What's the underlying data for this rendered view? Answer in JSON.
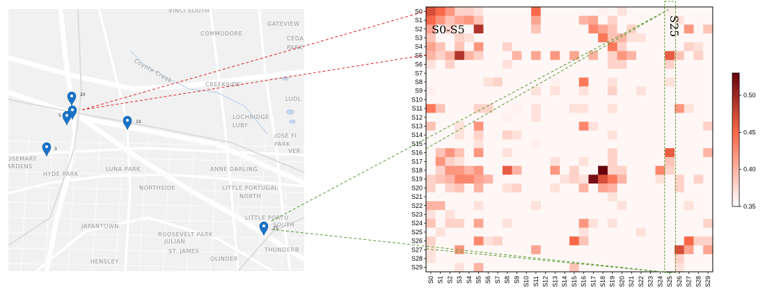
{
  "map": {
    "places": [
      {
        "name": "VINCI SOUTH"
      },
      {
        "name": "GATEVIEW"
      },
      {
        "name": "COMMODORE"
      },
      {
        "name": "CEDA"
      },
      {
        "name": "PARK"
      },
      {
        "name": "Coyote Creek"
      },
      {
        "name": "CREEKSIDE"
      },
      {
        "name": "LUDL"
      },
      {
        "name": "LOCHRIDGE"
      },
      {
        "name": "LUBY"
      },
      {
        "name": "JOSE FI"
      },
      {
        "name": "PARK"
      },
      {
        "name": "VER"
      },
      {
        "name": "OSEMARY"
      },
      {
        "name": "ARDENS"
      },
      {
        "name": "HYDE PARK"
      },
      {
        "name": "LUNA PARK"
      },
      {
        "name": "ANNE DARLING"
      },
      {
        "name": "NORTHSIDE"
      },
      {
        "name": "LITTLE PORTUGAL"
      },
      {
        "name": "NORTH"
      },
      {
        "name": "LITTLE PORTU"
      },
      {
        "name": "SOUTH"
      },
      {
        "name": "JAPANTOWN"
      },
      {
        "name": "ROOSEVELT PARK"
      },
      {
        "name": "JULIAN"
      },
      {
        "name": "ST. JAMES"
      },
      {
        "name": "THUNDERB"
      },
      {
        "name": "HENSLEY"
      },
      {
        "name": "OLINDER"
      }
    ],
    "pins": [
      {
        "id": "20"
      },
      {
        "id": "5"
      },
      {
        "id": "19"
      },
      {
        "id": "3"
      },
      {
        "id": "25"
      }
    ],
    "pin_color": "#1a73c8",
    "red_line_color": "#e02020",
    "green_line_color": "#4c9a2a"
  },
  "chart_data": {
    "type": "heatmap",
    "rows": [
      "S0",
      "S1",
      "S2",
      "S3",
      "S4",
      "S5",
      "S6",
      "S7",
      "S8",
      "S9",
      "S10",
      "S11",
      "S12",
      "S13",
      "S14",
      "S15",
      "S16",
      "S17",
      "S18",
      "S19",
      "S20",
      "S21",
      "S22",
      "S23",
      "S24",
      "S25",
      "S26",
      "S27",
      "S28",
      "S29"
    ],
    "columns": [
      "S0",
      "S1",
      "S2",
      "S3",
      "S4",
      "S5",
      "S6",
      "S7",
      "S8",
      "S9",
      "S10",
      "S11",
      "S12",
      "S13",
      "S14",
      "S15",
      "S16",
      "S17",
      "S18",
      "S19",
      "S20",
      "S21",
      "S22",
      "S23",
      "S24",
      "S25",
      "S26",
      "S27",
      "S28",
      "S29"
    ],
    "default_value": 0.355,
    "cells": [
      [
        0,
        0,
        0.47
      ],
      [
        0,
        1,
        0.45
      ],
      [
        0,
        2,
        0.42
      ],
      [
        0,
        3,
        0.38
      ],
      [
        0,
        4,
        0.38
      ],
      [
        0,
        5,
        0.37
      ],
      [
        0,
        11,
        0.45
      ],
      [
        0,
        18,
        0.36
      ],
      [
        0,
        20,
        0.37
      ],
      [
        0,
        25,
        0.36
      ],
      [
        1,
        0,
        0.45
      ],
      [
        1,
        1,
        0.42
      ],
      [
        1,
        2,
        0.39
      ],
      [
        1,
        3,
        0.41
      ],
      [
        1,
        4,
        0.42
      ],
      [
        1,
        5,
        0.39
      ],
      [
        1,
        11,
        0.41
      ],
      [
        1,
        16,
        0.4
      ],
      [
        1,
        17,
        0.41
      ],
      [
        1,
        19,
        0.38
      ],
      [
        1,
        26,
        0.37
      ],
      [
        2,
        0,
        0.41
      ],
      [
        2,
        2,
        0.38
      ],
      [
        2,
        5,
        0.49
      ],
      [
        2,
        11,
        0.39
      ],
      [
        2,
        17,
        0.43
      ],
      [
        2,
        18,
        0.41
      ],
      [
        2,
        19,
        0.39
      ],
      [
        2,
        21,
        0.38
      ],
      [
        2,
        27,
        0.42
      ],
      [
        2,
        29,
        0.39
      ],
      [
        3,
        0,
        0.39
      ],
      [
        3,
        3,
        0.38
      ],
      [
        3,
        4,
        0.37
      ],
      [
        3,
        18,
        0.44
      ],
      [
        3,
        19,
        0.39
      ],
      [
        3,
        20,
        0.4
      ],
      [
        3,
        21,
        0.37
      ],
      [
        3,
        22,
        0.37
      ],
      [
        4,
        0,
        0.41
      ],
      [
        4,
        1,
        0.39
      ],
      [
        4,
        3,
        0.39
      ],
      [
        4,
        5,
        0.42
      ],
      [
        4,
        8,
        0.38
      ],
      [
        4,
        19,
        0.44
      ],
      [
        4,
        20,
        0.38
      ],
      [
        4,
        27,
        0.38
      ],
      [
        4,
        28,
        0.37
      ],
      [
        5,
        0,
        0.4
      ],
      [
        5,
        1,
        0.38
      ],
      [
        5,
        2,
        0.4
      ],
      [
        5,
        3,
        0.49
      ],
      [
        5,
        4,
        0.4
      ],
      [
        5,
        5,
        0.38
      ],
      [
        5,
        9,
        0.4
      ],
      [
        5,
        11,
        0.41
      ],
      [
        5,
        13,
        0.42
      ],
      [
        5,
        15,
        0.41
      ],
      [
        5,
        17,
        0.4
      ],
      [
        5,
        19,
        0.38
      ],
      [
        5,
        20,
        0.42
      ],
      [
        5,
        21,
        0.4
      ],
      [
        5,
        25,
        0.46
      ],
      [
        5,
        26,
        0.39
      ],
      [
        5,
        28,
        0.38
      ],
      [
        6,
        0,
        0.37
      ],
      [
        6,
        2,
        0.38
      ],
      [
        6,
        8,
        0.37
      ],
      [
        6,
        19,
        0.38
      ],
      [
        6,
        20,
        0.38
      ],
      [
        6,
        25,
        0.38
      ],
      [
        8,
        6,
        0.37
      ],
      [
        8,
        7,
        0.38
      ],
      [
        8,
        13,
        0.36
      ],
      [
        8,
        16,
        0.44
      ],
      [
        8,
        19,
        0.37
      ],
      [
        8,
        25,
        0.37
      ],
      [
        9,
        0,
        0.36
      ],
      [
        9,
        11,
        0.37
      ],
      [
        9,
        13,
        0.37
      ],
      [
        9,
        16,
        0.37
      ],
      [
        9,
        19,
        0.38
      ],
      [
        9,
        22,
        0.37
      ],
      [
        11,
        0,
        0.44
      ],
      [
        11,
        1,
        0.39
      ],
      [
        11,
        5,
        0.38
      ],
      [
        11,
        6,
        0.38
      ],
      [
        11,
        9,
        0.36
      ],
      [
        11,
        11,
        0.37
      ],
      [
        11,
        15,
        0.37
      ],
      [
        11,
        16,
        0.37
      ],
      [
        11,
        19,
        0.37
      ],
      [
        11,
        26,
        0.42
      ],
      [
        11,
        27,
        0.37
      ],
      [
        12,
        8,
        0.36
      ],
      [
        12,
        11,
        0.37
      ],
      [
        13,
        0,
        0.39
      ],
      [
        13,
        3,
        0.37
      ],
      [
        13,
        5,
        0.42
      ],
      [
        13,
        16,
        0.43
      ],
      [
        13,
        17,
        0.37
      ],
      [
        13,
        29,
        0.38
      ],
      [
        14,
        3,
        0.37
      ],
      [
        14,
        5,
        0.38
      ],
      [
        14,
        8,
        0.38
      ],
      [
        14,
        9,
        0.37
      ],
      [
        14,
        19,
        0.37
      ],
      [
        15,
        5,
        0.37
      ],
      [
        15,
        11,
        0.36
      ],
      [
        16,
        1,
        0.39
      ],
      [
        16,
        2,
        0.42
      ],
      [
        16,
        3,
        0.39
      ],
      [
        16,
        5,
        0.42
      ],
      [
        16,
        8,
        0.37
      ],
      [
        16,
        19,
        0.38
      ],
      [
        16,
        25,
        0.46
      ],
      [
        16,
        29,
        0.4
      ],
      [
        17,
        1,
        0.42
      ],
      [
        17,
        2,
        0.38
      ],
      [
        17,
        3,
        0.37
      ],
      [
        17,
        13,
        0.37
      ],
      [
        17,
        16,
        0.37
      ],
      [
        17,
        19,
        0.38
      ],
      [
        17,
        25,
        0.39
      ],
      [
        18,
        1,
        0.38
      ],
      [
        18,
        2,
        0.42
      ],
      [
        18,
        3,
        0.42
      ],
      [
        18,
        4,
        0.4
      ],
      [
        18,
        5,
        0.42
      ],
      [
        18,
        8,
        0.46
      ],
      [
        18,
        9,
        0.4
      ],
      [
        18,
        13,
        0.42
      ],
      [
        18,
        15,
        0.38
      ],
      [
        18,
        18,
        0.53
      ],
      [
        18,
        19,
        0.38
      ],
      [
        18,
        20,
        0.38
      ],
      [
        18,
        24,
        0.43
      ],
      [
        18,
        25,
        0.38
      ],
      [
        19,
        0,
        0.38
      ],
      [
        19,
        1,
        0.39
      ],
      [
        19,
        2,
        0.4
      ],
      [
        19,
        3,
        0.43
      ],
      [
        19,
        4,
        0.43
      ],
      [
        19,
        5,
        0.41
      ],
      [
        19,
        6,
        0.4
      ],
      [
        19,
        14,
        0.37
      ],
      [
        19,
        15,
        0.38
      ],
      [
        19,
        16,
        0.37
      ],
      [
        19,
        17,
        0.52
      ],
      [
        19,
        18,
        0.47
      ],
      [
        19,
        19,
        0.44
      ],
      [
        19,
        20,
        0.4
      ],
      [
        19,
        24,
        0.37
      ],
      [
        19,
        26,
        0.38
      ],
      [
        19,
        28,
        0.38
      ],
      [
        20,
        0,
        0.38
      ],
      [
        20,
        2,
        0.38
      ],
      [
        20,
        3,
        0.39
      ],
      [
        20,
        5,
        0.4
      ],
      [
        20,
        8,
        0.37
      ],
      [
        20,
        9,
        0.38
      ],
      [
        20,
        13,
        0.37
      ],
      [
        20,
        16,
        0.4
      ],
      [
        20,
        18,
        0.41
      ],
      [
        20,
        19,
        0.4
      ],
      [
        20,
        26,
        0.38
      ],
      [
        21,
        19,
        0.37
      ],
      [
        22,
        0,
        0.4
      ],
      [
        22,
        1,
        0.4
      ],
      [
        22,
        5,
        0.37
      ],
      [
        22,
        11,
        0.37
      ],
      [
        22,
        20,
        0.37
      ],
      [
        22,
        27,
        0.37
      ],
      [
        23,
        0,
        0.37
      ],
      [
        23,
        2,
        0.37
      ],
      [
        24,
        0,
        0.39
      ],
      [
        24,
        2,
        0.38
      ],
      [
        24,
        3,
        0.38
      ],
      [
        24,
        5,
        0.41
      ],
      [
        24,
        8,
        0.37
      ],
      [
        24,
        16,
        0.42
      ],
      [
        24,
        17,
        0.37
      ],
      [
        24,
        19,
        0.37
      ],
      [
        24,
        29,
        0.38
      ],
      [
        25,
        1,
        0.37
      ],
      [
        25,
        16,
        0.37
      ],
      [
        25,
        22,
        0.37
      ],
      [
        26,
        0,
        0.38
      ],
      [
        26,
        5,
        0.43
      ],
      [
        26,
        6,
        0.37
      ],
      [
        26,
        7,
        0.38
      ],
      [
        26,
        15,
        0.45
      ],
      [
        26,
        16,
        0.39
      ],
      [
        26,
        27,
        0.45
      ],
      [
        26,
        28,
        0.38
      ],
      [
        26,
        29,
        0.38
      ],
      [
        27,
        0,
        0.37
      ],
      [
        27,
        3,
        0.42
      ],
      [
        27,
        11,
        0.41
      ],
      [
        27,
        26,
        0.47
      ],
      [
        27,
        27,
        0.41
      ],
      [
        27,
        29,
        0.41
      ],
      [
        28,
        0,
        0.37
      ],
      [
        28,
        26,
        0.38
      ],
      [
        29,
        3,
        0.37
      ],
      [
        29,
        5,
        0.4
      ],
      [
        29,
        15,
        0.39
      ],
      [
        29,
        26,
        0.37
      ]
    ],
    "colorbar": {
      "min": 0.35,
      "max": 0.53,
      "ticks": [
        "0.35",
        "0.40",
        "0.45",
        "0.50"
      ],
      "low_color": "#ffffff",
      "mid_color": "#fb6a4a",
      "high_color": "#67000d"
    },
    "annotations": [
      {
        "text": "S0-S5"
      },
      {
        "text": "S25"
      }
    ]
  }
}
